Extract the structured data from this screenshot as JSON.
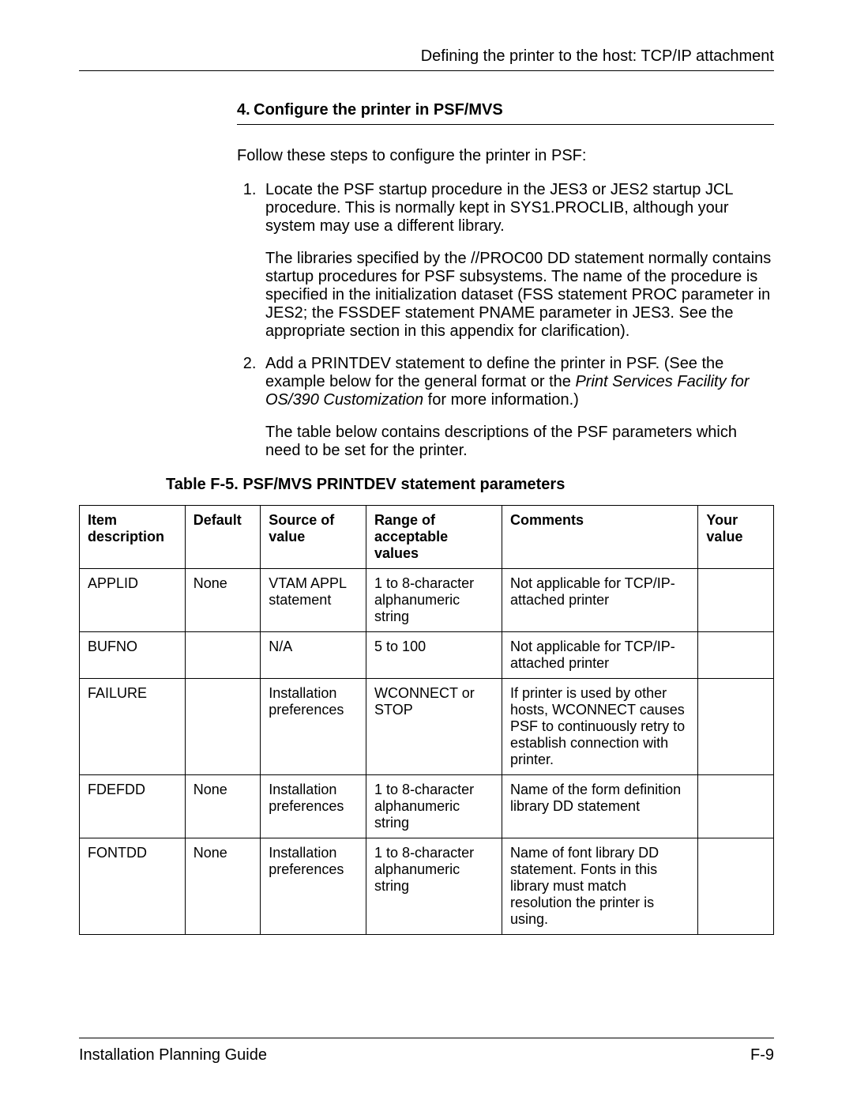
{
  "header": {
    "running_title": "Defining the printer to the host: TCP/IP attachment"
  },
  "section": {
    "number": "4.",
    "title": "Configure the printer in PSF/MVS"
  },
  "intro": "Follow these steps to configure the printer in PSF:",
  "steps": [
    {
      "para1": "Locate the PSF startup procedure in the JES3 or JES2 startup JCL procedure. This is normally kept in SYS1.PROCLIB, although your system may use a different library.",
      "para2": "The libraries specified by the //PROC00 DD statement normally contains startup procedures for PSF subsystems. The name of the procedure is specified in the initialization dataset (FSS statement PROC parameter in JES2; the FSSDEF statement PNAME parameter in JES3. See the appropriate section in this appendix for clarification)."
    },
    {
      "para1_pre": "Add a PRINTDEV statement to define the printer in PSF. (See the example below for the general format or the ",
      "para1_italic": "Print Services Facility for OS/390 Customization",
      "para1_post": " for more information.)",
      "para2": "The table below contains descriptions of the PSF parameters which need to be set for the printer."
    }
  ],
  "table": {
    "caption": "Table F-5. PSF/MVS PRINTDEV statement parameters",
    "columns": [
      {
        "label": "Item description",
        "width": "14%"
      },
      {
        "label": "Default",
        "width": "10%"
      },
      {
        "label": "Source of value",
        "width": "14%"
      },
      {
        "label": "Range of acceptable values",
        "width": "18%"
      },
      {
        "label": "Comments",
        "width": "26%"
      },
      {
        "label": "Your value",
        "width": "10%"
      }
    ],
    "rows": [
      [
        "APPLID",
        "None",
        "VTAM APPL statement",
        "1 to 8-character alphanumeric string",
        "Not applicable for TCP/IP-attached printer",
        ""
      ],
      [
        "BUFNO",
        "",
        "N/A",
        "5 to 100",
        "Not applicable for TCP/IP-attached printer",
        ""
      ],
      [
        "FAILURE",
        "",
        "Installation preferences",
        "WCONNECT or STOP",
        "If printer is used by other hosts, WCONNECT causes PSF to continuously retry to establish connection with printer.",
        ""
      ],
      [
        "FDEFDD",
        "None",
        "Installation preferences",
        "1 to 8-character alphanumeric string",
        "Name of the form definition library DD statement",
        ""
      ],
      [
        "FONTDD",
        "None",
        "Installation preferences",
        "1 to 8-character alphanumeric string",
        "Name of font library DD statement. Fonts in this library must match resolution the printer is using.",
        ""
      ]
    ]
  },
  "footer": {
    "left": "Installation Planning Guide",
    "right": "F-9"
  }
}
